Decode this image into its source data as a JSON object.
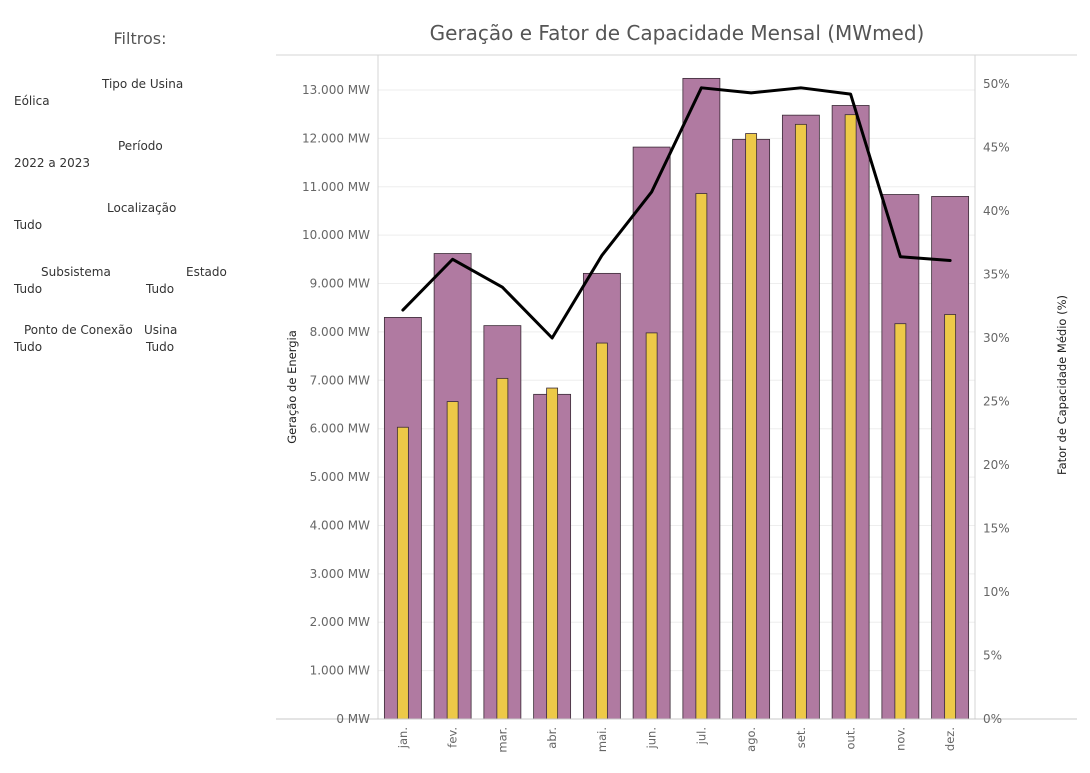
{
  "filters": {
    "title": "Filtros:",
    "tipo_usina": {
      "label": "Tipo de Usina",
      "value": "Eólica"
    },
    "periodo": {
      "label": "Período",
      "value": "2022 a 2023"
    },
    "localizacao": {
      "label": "Localização",
      "value": "Tudo"
    },
    "subsistema": {
      "label": "Subsistema",
      "value": "Tudo"
    },
    "estado": {
      "label": "Estado",
      "value": "Tudo"
    },
    "ponto_conexao": {
      "label": "Ponto de Conexão",
      "value": "Tudo"
    },
    "usina": {
      "label": "Usina",
      "value": "Tudo"
    }
  },
  "colors": {
    "outer_bar": "#b07aa1",
    "inner_bar": "#edc948",
    "line": "#000000",
    "grid": "#eeeeee"
  },
  "chart_data": {
    "type": "bar",
    "title": "Geração e Fator de Capacidade Mensal (MWmed)",
    "ylabel": "Geração de Energia",
    "y2label": "Fator de Capacidade Médio (%)",
    "categories": [
      "jan.",
      "fev.",
      "mar.",
      "abr.",
      "mai.",
      "jun.",
      "jul.",
      "ago.",
      "set.",
      "out.",
      "nov.",
      "dez."
    ],
    "ylim": [
      0,
      13000
    ],
    "y2lim": [
      0,
      50
    ],
    "yticks": [
      "0 MW",
      "1.000 MW",
      "2.000 MW",
      "3.000 MW",
      "4.000 MW",
      "5.000 MW",
      "6.000 MW",
      "7.000 MW",
      "8.000 MW",
      "9.000 MW",
      "10.000 MW",
      "11.000 MW",
      "12.000 MW",
      "13.000 MW"
    ],
    "y2ticks": [
      "0%",
      "5%",
      "10%",
      "15%",
      "20%",
      "25%",
      "30%",
      "35%",
      "40%",
      "45%",
      "50%"
    ],
    "grid": true,
    "series": [
      {
        "kind": "bar-wide",
        "values": [
          8300,
          9620,
          8130,
          6710,
          9210,
          11820,
          13240,
          11980,
          12480,
          12680,
          10840,
          10800
        ]
      },
      {
        "kind": "bar-narrow",
        "values": [
          6030,
          6560,
          7040,
          6840,
          7770,
          7980,
          10860,
          12100,
          12290,
          12490,
          8170,
          8360
        ]
      },
      {
        "kind": "line",
        "axis": "right",
        "values": [
          32.2,
          36.2,
          34.0,
          30.0,
          36.5,
          41.5,
          49.7,
          49.3,
          49.7,
          49.2,
          36.4,
          36.1
        ]
      }
    ]
  }
}
